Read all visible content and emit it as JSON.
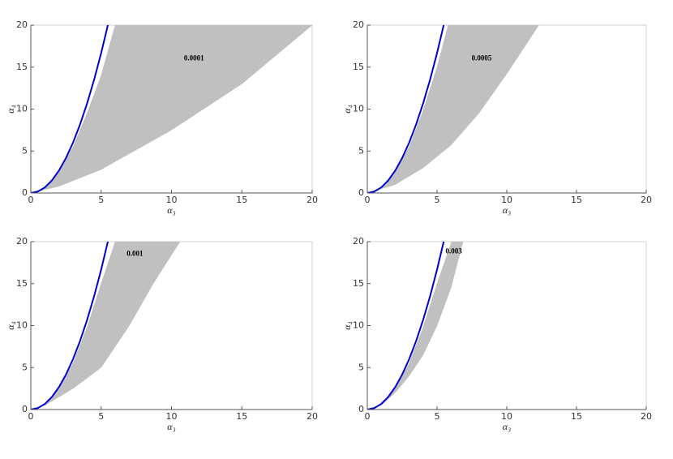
{
  "chart_data": [
    {
      "type": "area",
      "annotation": "0.0001",
      "xlabel": "α₃",
      "ylabel": "α₄",
      "xlim": [
        0,
        20
      ],
      "ylim": [
        0,
        20
      ],
      "xticks": [
        0,
        5,
        10,
        15,
        20
      ],
      "yticks": [
        0,
        5,
        10,
        15,
        20
      ],
      "series": [
        {
          "color": "#c0c0c0",
          "x": [
            0,
            1,
            2,
            3,
            4,
            5,
            6
          ],
          "values": [
            0,
            0.6,
            2.5,
            5.5,
            9.5,
            14,
            20
          ],
          "x2": [
            0,
            2,
            5,
            10,
            15,
            20
          ],
          "values2": [
            0,
            0.8,
            2.8,
            7.5,
            13,
            20
          ]
        },
        {
          "color": "#0000cc",
          "x": [
            0,
            0.5,
            1,
            1.5,
            2,
            2.5,
            3,
            3.5,
            4,
            4.5,
            5,
            5.5
          ],
          "values": [
            0,
            0.17,
            0.67,
            1.5,
            2.67,
            4.17,
            6,
            8.17,
            10.67,
            13.5,
            16.67,
            20.17
          ]
        }
      ]
    },
    {
      "type": "area",
      "annotation": "0.0005",
      "xlabel": "α₃",
      "ylabel": "α₄",
      "xlim": [
        0,
        20
      ],
      "ylim": [
        0,
        20
      ],
      "xticks": [
        0,
        5,
        10,
        15,
        20
      ],
      "yticks": [
        0,
        5,
        10,
        15,
        20
      ],
      "series": [
        {
          "color": "#c0c0c0",
          "x": [
            0,
            1,
            2,
            3,
            4,
            5,
            5.8
          ],
          "values": [
            0,
            0.6,
            2.5,
            5.5,
            9.8,
            15,
            20
          ],
          "x2": [
            0,
            2,
            4,
            6,
            8,
            10,
            12.3
          ],
          "values2": [
            0,
            1,
            3,
            5.7,
            9.5,
            14.2,
            20
          ]
        },
        {
          "color": "#0000cc",
          "x": [
            0,
            0.5,
            1,
            1.5,
            2,
            2.5,
            3,
            3.5,
            4,
            4.5,
            5,
            5.5
          ],
          "values": [
            0,
            0.17,
            0.67,
            1.5,
            2.67,
            4.17,
            6,
            8.17,
            10.67,
            13.5,
            16.67,
            20.17
          ]
        }
      ]
    },
    {
      "type": "area",
      "annotation": "0.001",
      "xlabel": "α₃",
      "ylabel": "α₄",
      "xlim": [
        0,
        20
      ],
      "ylim": [
        0,
        20
      ],
      "xticks": [
        0,
        5,
        10,
        15,
        20
      ],
      "yticks": [
        0,
        5,
        10,
        15,
        20
      ],
      "series": [
        {
          "color": "#c0c0c0",
          "x": [
            0,
            1,
            2,
            3,
            4,
            5,
            6
          ],
          "values": [
            0,
            0.6,
            2.5,
            5.5,
            9.8,
            15,
            20
          ],
          "x2": [
            0,
            1,
            2,
            3,
            5,
            7,
            8.7,
            10.6
          ],
          "values2": [
            0,
            0.5,
            1.5,
            2.5,
            5,
            10,
            15,
            20
          ]
        },
        {
          "color": "#0000cc",
          "x": [
            0,
            0.5,
            1,
            1.5,
            2,
            2.5,
            3,
            3.5,
            4,
            4.5,
            5,
            5.5
          ],
          "values": [
            0,
            0.17,
            0.67,
            1.5,
            2.67,
            4.17,
            6,
            8.17,
            10.67,
            13.5,
            16.67,
            20.17
          ]
        }
      ]
    },
    {
      "type": "area",
      "annotation": "0.003",
      "xlabel": "α₃",
      "ylabel": "α₄",
      "xlim": [
        0,
        20
      ],
      "ylim": [
        0,
        20
      ],
      "xticks": [
        0,
        5,
        10,
        15,
        20
      ],
      "yticks": [
        0,
        5,
        10,
        15,
        20
      ],
      "series": [
        {
          "color": "#c0c0c0",
          "x": [
            0,
            1,
            2,
            3,
            4,
            5,
            6.05
          ],
          "values": [
            0,
            0.6,
            2.5,
            5.5,
            9.8,
            15,
            20
          ],
          "x2": [
            0,
            1,
            2,
            3,
            4,
            5,
            6,
            6.86
          ],
          "values2": [
            0,
            0.5,
            2,
            4,
            6.5,
            10,
            14.5,
            20
          ]
        },
        {
          "color": "#0000cc",
          "x": [
            0,
            0.5,
            1,
            1.5,
            2,
            2.5,
            3,
            3.5,
            4,
            4.5,
            5,
            5.5
          ],
          "values": [
            0,
            0.17,
            0.67,
            1.5,
            2.67,
            4.17,
            6,
            8.17,
            10.67,
            13.5,
            16.67,
            20.17
          ]
        }
      ]
    }
  ]
}
